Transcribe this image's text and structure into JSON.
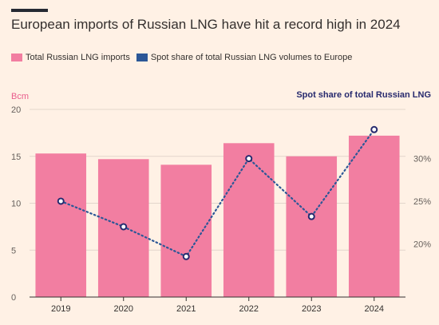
{
  "title": "European imports of Russian LNG have hit a record high in 2024",
  "chart_data": {
    "type": "bar+line",
    "categories": [
      "2019",
      "2020",
      "2021",
      "2022",
      "2023",
      "2024"
    ],
    "series": [
      {
        "name": "Total Russian LNG imports",
        "kind": "bar",
        "axis": "left",
        "color": "#f27ea1",
        "values": [
          15.3,
          14.7,
          14.1,
          16.4,
          15.0,
          17.2
        ]
      },
      {
        "name": "Spot share of total Russian LNG volumes to Europe",
        "kind": "line",
        "axis": "right",
        "color": "#2b5797",
        "style": "dotted",
        "values": [
          25.0,
          22.0,
          18.5,
          30.0,
          23.2,
          33.4
        ]
      }
    ],
    "left_axis": {
      "label": "Bcm",
      "range": [
        0,
        20
      ],
      "ticks": [
        "0",
        "5",
        "10",
        "15",
        "20"
      ]
    },
    "right_axis": {
      "label": "Spot share of total Russian LNG",
      "range": [
        13.75,
        35.77
      ],
      "ticks": [
        {
          "value": 20,
          "label": "20%"
        },
        {
          "value": 25,
          "label": "25%"
        },
        {
          "value": 30,
          "label": "30%"
        }
      ]
    },
    "grid": true,
    "legend": "top-left"
  }
}
